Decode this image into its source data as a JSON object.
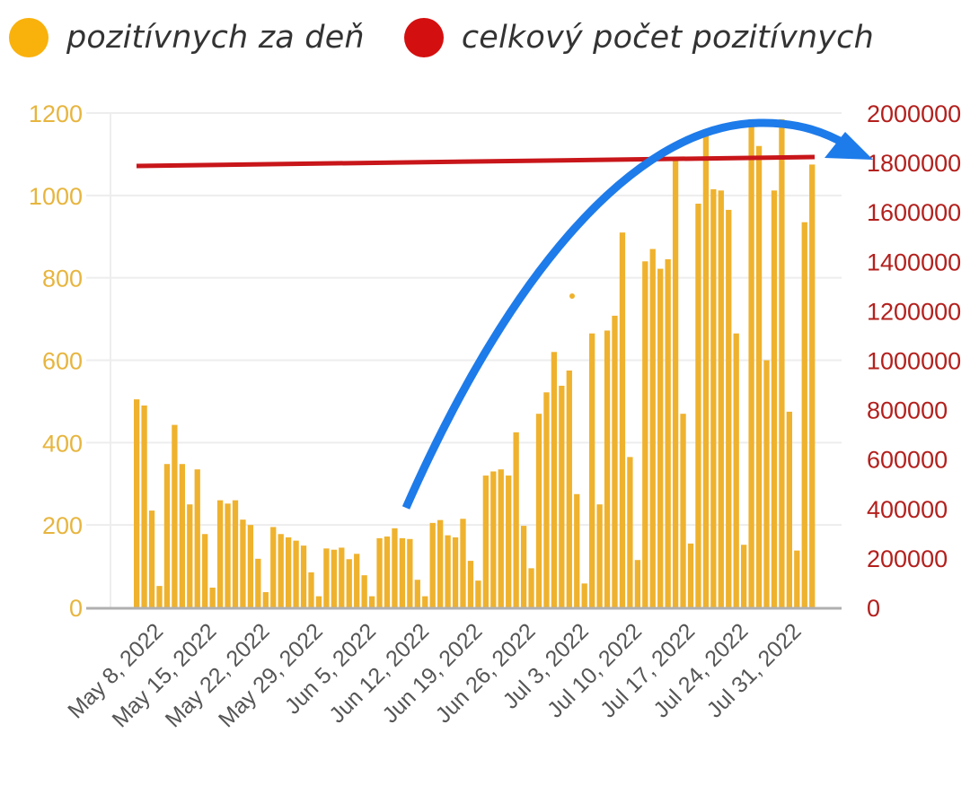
{
  "legend": {
    "items": [
      {
        "label": "pozitívnych za deň",
        "color": "#F9B10C"
      },
      {
        "label": "celkový počet pozitívnych",
        "color": "#D40F0F"
      }
    ]
  },
  "colors": {
    "bar": "#EFB22E",
    "line": "#C8161A",
    "arrow": "#1E7BEA",
    "grid": "#EDEDED",
    "axis": "#B0B0B0",
    "left_tick": "#E7B53F",
    "right_tick": "#B3201D",
    "x_tick": "#555555"
  },
  "chart_data": {
    "type": "bar",
    "title": "",
    "xlabel": "",
    "ylabel": "",
    "y_left": {
      "ticks": [
        "0",
        "200",
        "400",
        "600",
        "800",
        "1000",
        "1200"
      ],
      "range": [
        0,
        1200
      ]
    },
    "y_right": {
      "ticks": [
        "0",
        "200000",
        "400000",
        "600000",
        "800000",
        "1000000",
        "1200000",
        "1400000",
        "1600000",
        "1800000",
        "2000000"
      ],
      "range": [
        0,
        2000000
      ]
    },
    "x_tick_labels": [
      "May 8, 2022",
      "May 15, 2022",
      "May 22, 2022",
      "May 29, 2022",
      "Jun 5, 2022",
      "Jun 12, 2022",
      "Jun 19, 2022",
      "Jun 26, 2022",
      "Jul 3, 2022",
      "Jul 10, 2022",
      "Jul 17, 2022",
      "Jul 24, 2022",
      "Jul 31, 2022"
    ],
    "grid": true,
    "legend_position": "top",
    "series": [
      {
        "name": "pozitívnych za deň",
        "type": "bar",
        "axis": "left",
        "values": [
          505,
          490,
          235,
          52,
          348,
          443,
          348,
          250,
          335,
          178,
          48,
          260,
          252,
          260,
          213,
          200,
          118,
          37,
          195,
          178,
          170,
          162,
          150,
          85,
          27,
          143,
          140,
          145,
          117,
          130,
          78,
          27,
          168,
          172,
          192,
          168,
          166,
          67,
          27,
          205,
          212,
          175,
          170,
          215,
          113,
          65,
          320,
          330,
          335,
          320,
          425,
          198,
          95,
          470,
          522,
          620,
          538,
          575,
          275,
          58,
          665,
          250,
          672,
          708,
          910,
          365,
          115,
          840,
          870,
          822,
          845,
          1085,
          470,
          155,
          980,
          1150,
          1015,
          1012,
          965,
          665,
          152,
          1185,
          1120,
          600,
          1012,
          1185,
          475,
          138,
          935,
          1075
        ]
      },
      {
        "name": "celkový počet pozitívnych",
        "type": "line",
        "axis": "right",
        "start_value": 1786000,
        "end_value": 1822000
      }
    ],
    "annotations": [
      {
        "type": "arrow",
        "description": "blue curved arrow rising from Jun ~14 to the right axis near 1800000"
      },
      {
        "type": "dot",
        "description": "small yellow stray dot near Jul 3 at ~760"
      }
    ]
  }
}
